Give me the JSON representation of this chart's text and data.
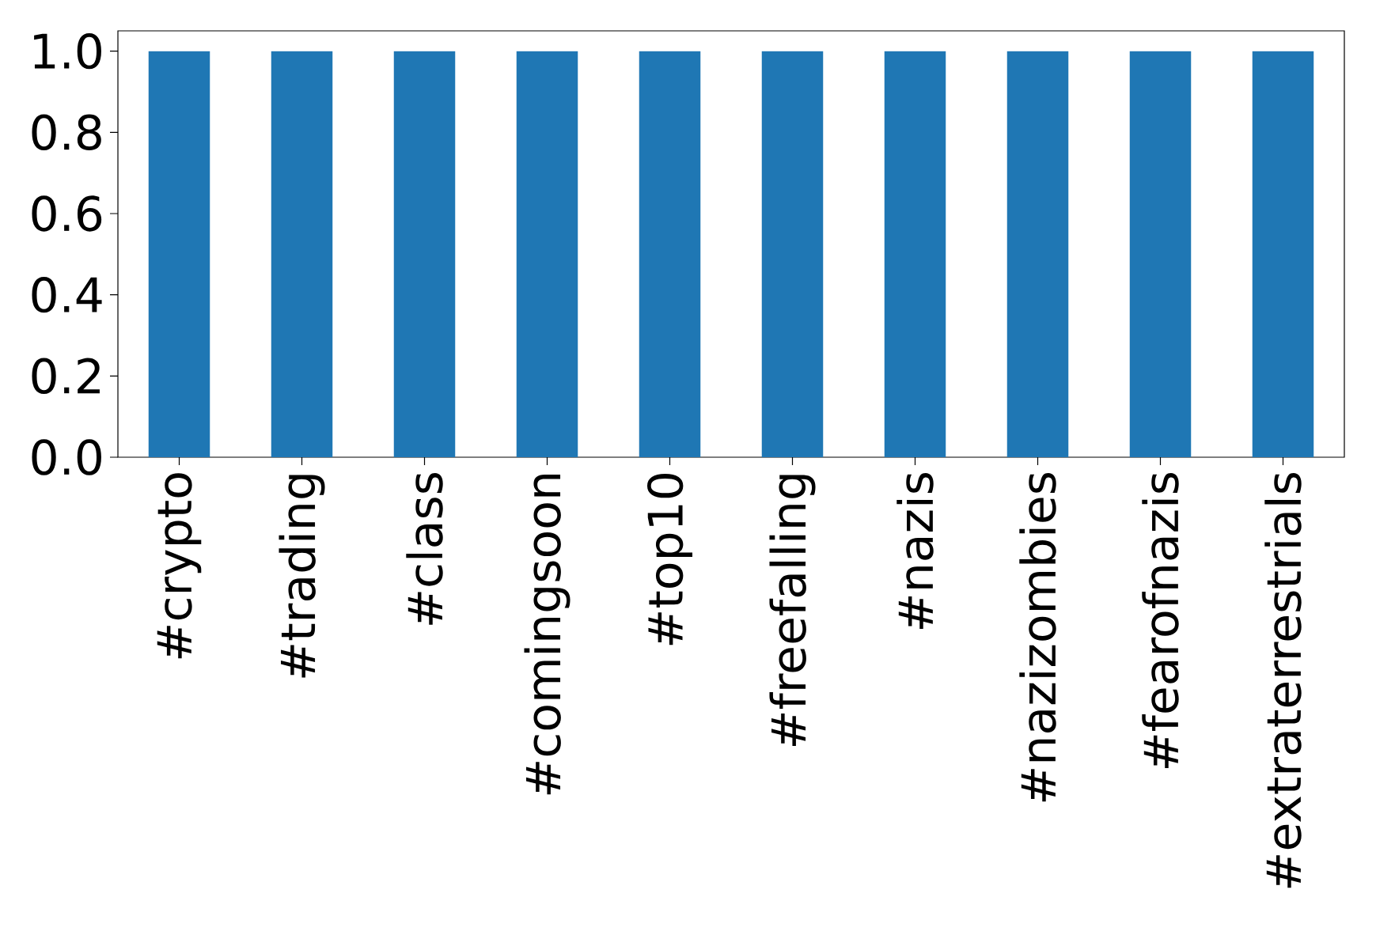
{
  "chart_data": {
    "type": "bar",
    "categories": [
      "#crypto",
      "#trading",
      "#class",
      "#comingsoon",
      "#top10",
      "#freefalling",
      "#nazis",
      "#nazizombies",
      "#fearofnazis",
      "#extraterrestrials"
    ],
    "values": [
      1.0,
      1.0,
      1.0,
      1.0,
      1.0,
      1.0,
      1.0,
      1.0,
      1.0,
      1.0
    ],
    "color": "#1f77b4",
    "ylim": [
      0,
      1.05
    ],
    "yticks": [
      {
        "value": 0,
        "label": "0.0"
      },
      0.2,
      0.4,
      0.6,
      0.8,
      {
        "value": 1,
        "label": "1.0"
      }
    ]
  }
}
